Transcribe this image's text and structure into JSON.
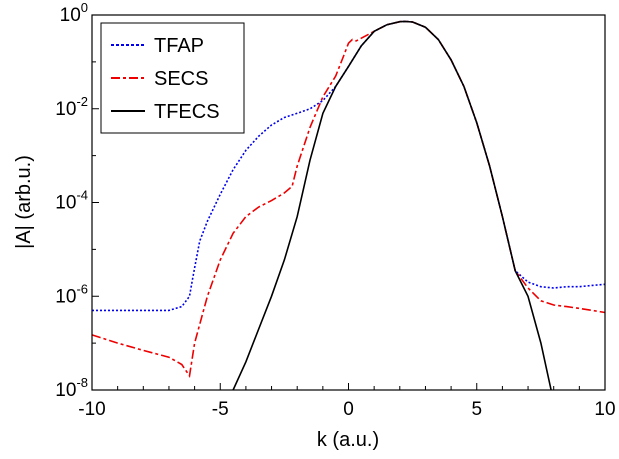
{
  "chart_data": {
    "type": "line",
    "title": "",
    "xlabel": "k (a.u.)",
    "ylabel": "|A| (arb.u.)",
    "xlim": [
      -10,
      10
    ],
    "ylim": [
      1e-08,
      1
    ],
    "yscale": "log",
    "xticks": [
      -10,
      -5,
      0,
      5,
      10
    ],
    "xtick_labels": [
      "-10",
      "-5",
      "0",
      "5",
      "10"
    ],
    "yticks": [
      {
        "value": 1e-08,
        "base": "10",
        "exp": "-8"
      },
      {
        "value": 1e-06,
        "base": "10",
        "exp": "-6"
      },
      {
        "value": 0.0001,
        "base": "10",
        "exp": "-4"
      },
      {
        "value": 0.01,
        "base": "10",
        "exp": "-2"
      },
      {
        "value": 1,
        "base": "10",
        "exp": "0"
      }
    ],
    "grid": false,
    "legend_position": "top-left",
    "series": [
      {
        "name": "TFAP",
        "color": "#0000ee",
        "style": "dotted",
        "x": [
          -10,
          -9.5,
          -9,
          -8.5,
          -8,
          -7.5,
          -7,
          -6.5,
          -6.2,
          -6.1,
          -6.0,
          -5.8,
          -5.5,
          -5,
          -4.5,
          -4,
          -3.5,
          -3,
          -2.5,
          -2,
          -1.5,
          -1,
          -0.5,
          0,
          0.5,
          1,
          1.5,
          2,
          2.2,
          2.5,
          3,
          3.5,
          4,
          4.5,
          5,
          5.5,
          6,
          6.5,
          7,
          7.5,
          8,
          8.5,
          9,
          9.5,
          10
        ],
        "y": [
          5e-07,
          5e-07,
          5e-07,
          5e-07,
          5e-07,
          5e-07,
          5e-07,
          6e-07,
          1e-06,
          2e-06,
          4e-06,
          1.5e-05,
          4e-05,
          0.00015,
          0.0005,
          0.0013,
          0.0026,
          0.0045,
          0.0065,
          0.008,
          0.01,
          0.015,
          0.03,
          0.08,
          0.22,
          0.45,
          0.62,
          0.72,
          0.73,
          0.71,
          0.55,
          0.3,
          0.11,
          0.03,
          0.005,
          0.0006,
          5e-05,
          3.5e-06,
          2e-06,
          1.6e-06,
          1.5e-06,
          1.6e-06,
          1.6e-06,
          1.7e-06,
          1.8e-06
        ]
      },
      {
        "name": "SECS",
        "color": "#ee0000",
        "style": "dashed",
        "x": [
          -10,
          -9,
          -8,
          -7,
          -6.5,
          -6.2,
          -6.0,
          -5.5,
          -5,
          -4.5,
          -4,
          -3.5,
          -3,
          -2.5,
          -2.2,
          -2,
          -1.5,
          -1,
          -0.5,
          -0.2,
          0,
          0.15,
          0.3,
          0.5,
          1,
          1.5,
          2,
          2.2,
          2.5,
          3,
          3.5,
          4,
          4.5,
          5,
          5.5,
          6,
          6.5,
          7,
          7.5,
          8,
          8.5,
          9,
          9.5,
          10
        ],
        "y": [
          1.5e-07,
          1e-07,
          7e-08,
          5e-08,
          3.5e-08,
          2e-08,
          1e-07,
          1e-06,
          6e-06,
          2.2e-05,
          5e-05,
          8e-05,
          0.00011,
          0.00016,
          0.00022,
          0.0006,
          0.004,
          0.018,
          0.05,
          0.13,
          0.25,
          0.3,
          0.28,
          0.32,
          0.45,
          0.62,
          0.72,
          0.73,
          0.71,
          0.55,
          0.3,
          0.11,
          0.03,
          0.005,
          0.0006,
          5e-05,
          3.5e-06,
          1.5e-06,
          8e-07,
          6.5e-07,
          6e-07,
          5.5e-07,
          5e-07,
          4.5e-07
        ]
      },
      {
        "name": "TFECS",
        "color": "#000000",
        "style": "solid",
        "x": [
          -4.5,
          -4,
          -3.5,
          -3,
          -2.5,
          -2,
          -1.5,
          -1,
          -0.5,
          0,
          0.5,
          1,
          1.5,
          2,
          2.2,
          2.5,
          3,
          3.5,
          4,
          4.5,
          5,
          5.5,
          6,
          6.5,
          7,
          7.5,
          7.9
        ],
        "y": [
          1e-08,
          4e-08,
          2e-07,
          1e-06,
          6e-06,
          5e-05,
          0.0008,
          0.008,
          0.03,
          0.08,
          0.22,
          0.45,
          0.62,
          0.72,
          0.73,
          0.71,
          0.55,
          0.3,
          0.11,
          0.03,
          0.005,
          0.0006,
          5e-05,
          3.5e-06,
          1e-06,
          1e-07,
          1e-08
        ]
      }
    ]
  }
}
